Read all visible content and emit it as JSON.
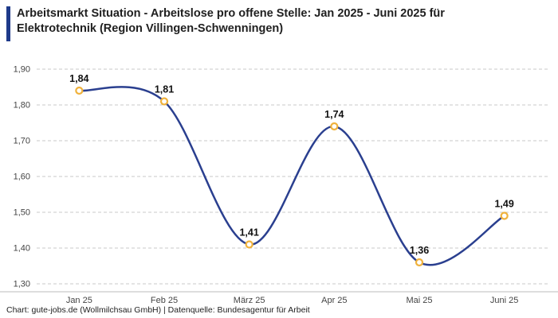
{
  "header": {
    "title_line1": "Arbeitsmarkt Situation - Arbeitslose pro offene Stelle: Jan 2025 - Juni 2025 für",
    "title_line2": "Elektrotechnik (Region Villingen-Schwenningen)"
  },
  "footer": {
    "text": "Chart: gute-jobs.de (Wollmilchsau GmbH) | Datenquelle: Bundesagentur für Arbeit"
  },
  "chart_data": {
    "type": "line",
    "title": "Arbeitsmarkt Situation - Arbeitslose pro offene Stelle: Jan 2025 - Juni 2025 für Elektrotechnik (Region Villingen-Schwenningen)",
    "categories": [
      "Jan 25",
      "Feb 25",
      "März 25",
      "Apr 25",
      "Mai 25",
      "Juni 25"
    ],
    "values": [
      1.84,
      1.81,
      1.41,
      1.74,
      1.36,
      1.49
    ],
    "point_labels": [
      "1,84",
      "1,81",
      "1,41",
      "1,74",
      "1,36",
      "1,49"
    ],
    "ylim": [
      1.3,
      1.9
    ],
    "yticks": [
      1.3,
      1.4,
      1.5,
      1.6,
      1.7,
      1.8,
      1.9
    ],
    "ytick_labels": [
      "1,30",
      "1,40",
      "1,50",
      "1,60",
      "1,70",
      "1,80",
      "1,90"
    ],
    "xlabel": "",
    "ylabel": "",
    "grid": "dashed-horizontal",
    "legend": "none",
    "colors": {
      "line": "#2a3f8f",
      "marker_ring": "#f0b23c",
      "marker_fill": "#ffffff",
      "gridline": "#c9c9c9",
      "axis_line": "#bbbbbb",
      "tick_text": "#444444",
      "label_text": "#111111"
    }
  }
}
